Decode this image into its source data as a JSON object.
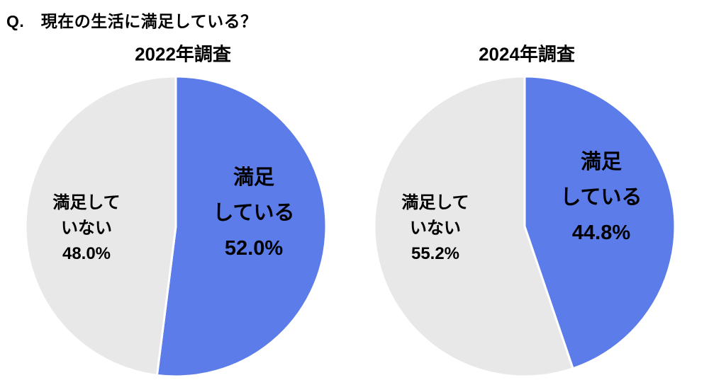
{
  "page_title": "Q.　現在の生活に満足している？",
  "colors": {
    "satisfied": "#5B7CE9",
    "not_satisfied": "#E8E8E8",
    "divider": "#FFFFFF",
    "text": "#000000"
  },
  "chart_data": [
    {
      "type": "pie",
      "title": "2022年調査",
      "start_angle_deg": 0,
      "direction": "clockwise",
      "legend_position": "none",
      "slices": [
        {
          "key": "satisfied",
          "name": "満足している",
          "value": 52.0,
          "color": "#5B7CE9",
          "label_lines": [
            "満足",
            "している",
            "52.0%"
          ]
        },
        {
          "key": "not-satisfied",
          "name": "満足していない",
          "value": 48.0,
          "color": "#E8E8E8",
          "label_lines": [
            "満足して",
            "いない",
            "48.0%"
          ]
        }
      ]
    },
    {
      "type": "pie",
      "title": "2024年調査",
      "start_angle_deg": 0,
      "direction": "clockwise",
      "legend_position": "none",
      "slices": [
        {
          "key": "satisfied",
          "name": "満足している",
          "value": 44.8,
          "color": "#5B7CE9",
          "label_lines": [
            "満足",
            "している",
            "44.8%"
          ]
        },
        {
          "key": "not-satisfied",
          "name": "満足していない",
          "value": 55.2,
          "color": "#E8E8E8",
          "label_lines": [
            "満足して",
            "いない",
            "55.2%"
          ]
        }
      ]
    }
  ]
}
